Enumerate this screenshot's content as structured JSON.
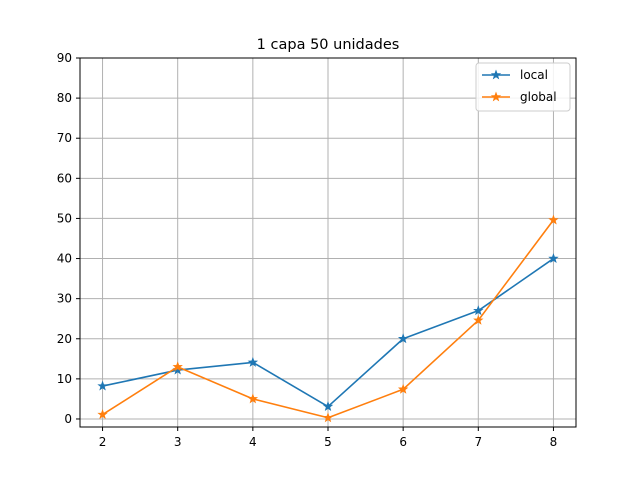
{
  "chart_data": {
    "type": "line",
    "title": "1 capa 50 unidades",
    "xlabel": "",
    "ylabel": "",
    "x": [
      2,
      3,
      4,
      5,
      6,
      7,
      8
    ],
    "xlim": [
      1.7,
      8.3
    ],
    "ylim": [
      -2,
      90
    ],
    "xticks": [
      2,
      3,
      4,
      5,
      6,
      7,
      8
    ],
    "yticks": [
      0,
      10,
      20,
      30,
      40,
      50,
      60,
      70,
      80,
      90
    ],
    "grid": true,
    "legend_position": "top-right",
    "marker": "star",
    "series": [
      {
        "name": "local",
        "color": "#1f77b4",
        "values": [
          8.2,
          12.2,
          14.1,
          3.1,
          20.0,
          27.0,
          40.0
        ]
      },
      {
        "name": "global",
        "color": "#ff7f0e",
        "values": [
          1.1,
          13.0,
          5.0,
          0.3,
          7.4,
          24.6,
          49.6
        ]
      }
    ]
  }
}
